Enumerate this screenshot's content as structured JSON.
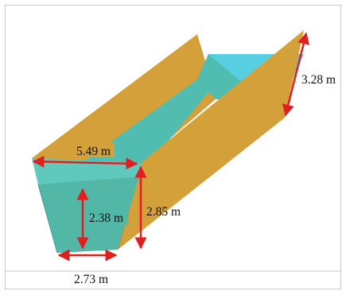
{
  "figure": {
    "colors": {
      "background": "#ffffff",
      "frame": "#c8c8c8",
      "wall": "#d4a03a",
      "wall_dark": "#c48f2c",
      "water": "#56cfe0",
      "water_face": "#4fb3a4",
      "arrow": "#e02020",
      "text": "#111111"
    },
    "dimensions": {
      "top_width": "5.49 m",
      "water_depth": "2.38 m",
      "wall_height": "2.85 m",
      "bottom_width": "2.73 m",
      "slant_height": "3.28 m"
    }
  }
}
